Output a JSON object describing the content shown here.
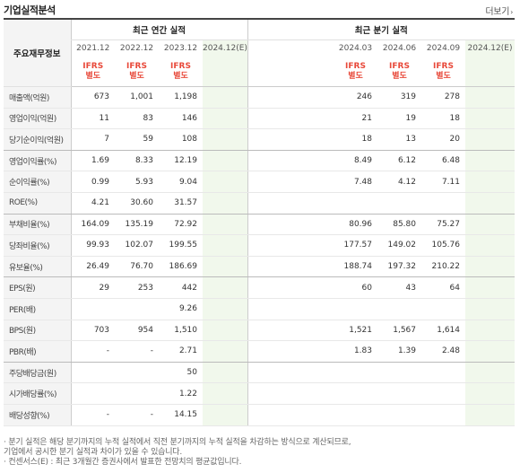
{
  "header": {
    "title": "기업실적분석",
    "more_label": "더보기",
    "more_icon": "chevron-right-icon"
  },
  "table": {
    "row_header": "주요재무정보",
    "group_annual": "최근 연간 실적",
    "group_quarter": "최근 분기 실적",
    "annual_periods": [
      "2021.12",
      "2022.12",
      "2023.12",
      "2024.12(E)"
    ],
    "quarter_periods": [
      "2024.03",
      "2024.06",
      "2024.09",
      "2024.12(E)"
    ],
    "basis_line1": "IFRS",
    "basis_line2": "별도",
    "rows": [
      {
        "label": "매출액(억원)",
        "annual": [
          "673",
          "1,001",
          "1,198",
          ""
        ],
        "quarter": [
          "246",
          "319",
          "278",
          ""
        ]
      },
      {
        "label": "영업이익(억원)",
        "annual": [
          "11",
          "83",
          "146",
          ""
        ],
        "quarter": [
          "21",
          "19",
          "18",
          ""
        ]
      },
      {
        "label": "당기순이익(억원)",
        "annual": [
          "7",
          "59",
          "108",
          ""
        ],
        "quarter": [
          "18",
          "13",
          "20",
          ""
        ]
      },
      {
        "label": "영업이익률(%)",
        "annual": [
          "1.69",
          "8.33",
          "12.19",
          ""
        ],
        "quarter": [
          "8.49",
          "6.12",
          "6.48",
          ""
        ]
      },
      {
        "label": "순이익률(%)",
        "annual": [
          "0.99",
          "5.93",
          "9.04",
          ""
        ],
        "quarter": [
          "7.48",
          "4.12",
          "7.11",
          ""
        ]
      },
      {
        "label": "ROE(%)",
        "annual": [
          "4.21",
          "30.60",
          "31.57",
          ""
        ],
        "quarter": [
          "",
          "",
          "",
          ""
        ]
      },
      {
        "label": "부채비율(%)",
        "annual": [
          "164.09",
          "135.19",
          "72.92",
          ""
        ],
        "quarter": [
          "80.96",
          "85.80",
          "75.27",
          ""
        ]
      },
      {
        "label": "당좌비율(%)",
        "annual": [
          "99.93",
          "102.07",
          "199.55",
          ""
        ],
        "quarter": [
          "177.57",
          "149.02",
          "105.76",
          ""
        ]
      },
      {
        "label": "유보율(%)",
        "annual": [
          "26.49",
          "76.70",
          "186.69",
          ""
        ],
        "quarter": [
          "188.74",
          "197.32",
          "210.22",
          ""
        ]
      },
      {
        "label": "EPS(원)",
        "annual": [
          "29",
          "253",
          "442",
          ""
        ],
        "quarter": [
          "60",
          "43",
          "64",
          ""
        ]
      },
      {
        "label": "PER(배)",
        "annual": [
          "",
          "",
          "9.26",
          ""
        ],
        "quarter": [
          "",
          "",
          "",
          ""
        ]
      },
      {
        "label": "BPS(원)",
        "annual": [
          "703",
          "954",
          "1,510",
          ""
        ],
        "quarter": [
          "1,521",
          "1,567",
          "1,614",
          ""
        ]
      },
      {
        "label": "PBR(배)",
        "annual": [
          "-",
          "-",
          "2.71",
          ""
        ],
        "quarter": [
          "1.83",
          "1.39",
          "2.48",
          ""
        ]
      },
      {
        "label": "주당배당금(원)",
        "annual": [
          "",
          "",
          "50",
          ""
        ],
        "quarter": [
          "",
          "",
          "",
          ""
        ]
      },
      {
        "label": "시가배당률(%)",
        "annual": [
          "",
          "",
          "1.22",
          ""
        ],
        "quarter": [
          "",
          "",
          "",
          ""
        ]
      },
      {
        "label": "배당성향(%)",
        "annual": [
          "-",
          "-",
          "14.15",
          ""
        ],
        "quarter": [
          "",
          "",
          "",
          ""
        ]
      }
    ]
  },
  "notes": [
    "· 분기 실적은 해당 분기까지의 누적 실적에서 직전 분기까지의 누적 실적을 차감하는 방식으로 계산되므로,",
    "  기업에서 공시한 분기 실적과 차이가 있을 수 있습니다.",
    "· 컨센서스(E) : 최근 3개월간 증권사에서 발표한 전망치의 평균값입니다."
  ],
  "colors": {
    "ifrs": "#e8493a",
    "estimate_bg": "#f1f8ec",
    "estimate_text": "#2a8f2a"
  }
}
